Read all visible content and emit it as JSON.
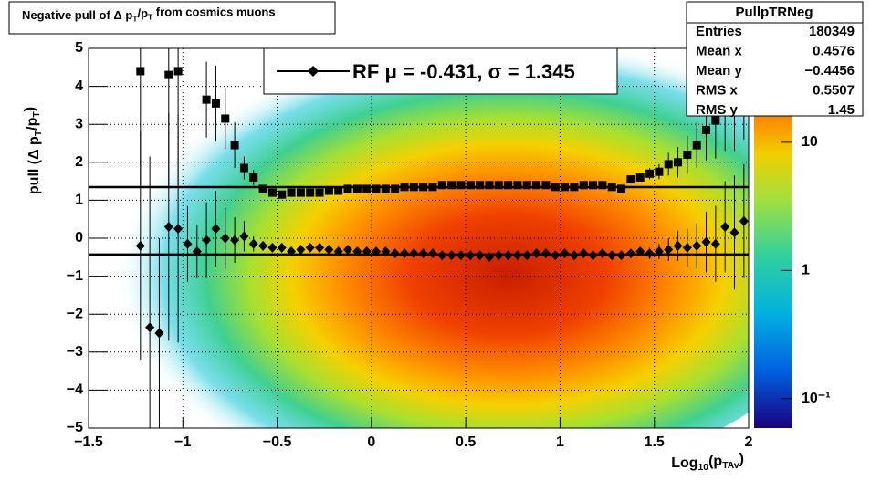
{
  "chart_data": {
    "type": "profile",
    "title_parts": [
      "Negative pull of Δ p",
      "T",
      "/p",
      "T",
      " from cosmics muons"
    ],
    "ylabel_parts": [
      "pull (Δ p",
      "T",
      "/p",
      "T",
      ")"
    ],
    "xlabel_parts": [
      "Log",
      "10",
      "(p",
      "TAv",
      ")"
    ],
    "xlim": [
      -1.5,
      2
    ],
    "ylim": [
      -5,
      5
    ],
    "xticks": [
      {
        "value": -1.5,
        "label": "−1.5"
      },
      {
        "value": -1,
        "label": "−1"
      },
      {
        "value": -0.5,
        "label": "−0.5"
      },
      0,
      0.5,
      1,
      1.5,
      2
    ],
    "yticks": [
      {
        "value": -5,
        "label": "−5"
      },
      {
        "value": -4,
        "label": "−4"
      },
      {
        "value": -3,
        "label": "−3"
      },
      {
        "value": -2,
        "label": "−2"
      },
      {
        "value": -1,
        "label": "−1"
      },
      0,
      1,
      2,
      3,
      4,
      5
    ],
    "grid": true,
    "x": [
      -1.225,
      -1.175,
      -1.125,
      -1.075,
      -1.025,
      -0.975,
      -0.925,
      -0.875,
      -0.825,
      -0.775,
      -0.725,
      -0.675,
      -0.625,
      -0.575,
      -0.525,
      -0.475,
      -0.425,
      -0.375,
      -0.325,
      -0.275,
      -0.225,
      -0.175,
      -0.125,
      -0.075,
      -0.025,
      0.025,
      0.075,
      0.125,
      0.175,
      0.225,
      0.275,
      0.325,
      0.375,
      0.425,
      0.475,
      0.525,
      0.575,
      0.625,
      0.675,
      0.725,
      0.775,
      0.825,
      0.875,
      0.925,
      0.975,
      1.025,
      1.075,
      1.125,
      1.175,
      1.225,
      1.275,
      1.325,
      1.375,
      1.425,
      1.475,
      1.525,
      1.575,
      1.625,
      1.675,
      1.725,
      1.775,
      1.825,
      1.875,
      1.925,
      1.975
    ],
    "series": [
      {
        "marker": "square",
        "color": "#000000",
        "values": [
          4.4,
          null,
          null,
          4.3,
          4.4,
          null,
          null,
          3.65,
          3.55,
          3.15,
          2.45,
          1.85,
          1.6,
          1.3,
          1.2,
          1.15,
          1.2,
          1.2,
          1.2,
          1.2,
          1.25,
          1.25,
          1.3,
          1.3,
          1.3,
          1.3,
          1.3,
          1.3,
          1.35,
          1.35,
          1.35,
          1.35,
          1.4,
          1.4,
          1.4,
          1.4,
          1.4,
          1.4,
          1.4,
          1.4,
          1.4,
          1.4,
          1.4,
          1.4,
          1.35,
          1.35,
          1.35,
          1.4,
          1.4,
          1.4,
          1.35,
          1.3,
          1.55,
          1.6,
          1.7,
          1.75,
          1.95,
          2.0,
          2.2,
          2.45,
          2.85,
          3.1,
          3.5,
          3.5,
          4.1
        ],
        "errors": [
          3,
          null,
          null,
          3,
          3,
          null,
          null,
          1,
          1,
          0.8,
          0.6,
          0.3,
          0.2,
          0.1,
          0.05,
          0.05,
          0.05,
          0.05,
          0.05,
          0.05,
          0.05,
          0.05,
          0.05,
          0.05,
          0.05,
          0.05,
          0.05,
          0.05,
          0.05,
          0.05,
          0.05,
          0.05,
          0.05,
          0.05,
          0.05,
          0.05,
          0.05,
          0.05,
          0.05,
          0.05,
          0.05,
          0.05,
          0.05,
          0.05,
          0.05,
          0.05,
          0.05,
          0.05,
          0.05,
          0.05,
          0.05,
          0.05,
          0.1,
          0.1,
          0.15,
          0.2,
          0.3,
          0.4,
          0.5,
          0.6,
          0.8,
          1,
          1.2,
          1.2,
          1.5
        ]
      },
      {
        "marker": "diamond",
        "color": "#000000",
        "values": [
          -0.2,
          -2.35,
          -2.5,
          0.3,
          0.25,
          -0.15,
          -0.35,
          -0.05,
          0.25,
          0.0,
          -0.05,
          0.05,
          -0.15,
          -0.2,
          -0.25,
          -0.25,
          -0.35,
          -0.3,
          -0.25,
          -0.25,
          -0.3,
          -0.35,
          -0.3,
          -0.35,
          -0.35,
          -0.35,
          -0.35,
          -0.4,
          -0.4,
          -0.4,
          -0.4,
          -0.4,
          -0.45,
          -0.45,
          -0.45,
          -0.45,
          -0.45,
          -0.5,
          -0.45,
          -0.45,
          -0.45,
          -0.45,
          -0.4,
          -0.4,
          -0.45,
          -0.4,
          -0.45,
          -0.4,
          -0.45,
          -0.4,
          -0.45,
          -0.45,
          -0.4,
          -0.35,
          -0.4,
          -0.35,
          -0.3,
          -0.2,
          -0.25,
          -0.2,
          -0.1,
          -0.15,
          0.3,
          0.15,
          0.45
        ],
        "errors": [
          3,
          4.5,
          2.5,
          3,
          3,
          1,
          0.7,
          1,
          1,
          0.8,
          0.6,
          0.4,
          0.2,
          0.1,
          0.05,
          0.05,
          0.05,
          0.05,
          0.05,
          0.05,
          0.05,
          0.05,
          0.05,
          0.05,
          0.05,
          0.05,
          0.05,
          0.05,
          0.05,
          0.05,
          0.05,
          0.05,
          0.05,
          0.05,
          0.05,
          0.05,
          0.05,
          0.05,
          0.05,
          0.05,
          0.05,
          0.05,
          0.05,
          0.05,
          0.05,
          0.05,
          0.05,
          0.05,
          0.05,
          0.05,
          0.05,
          0.05,
          0.1,
          0.1,
          0.15,
          0.2,
          0.3,
          0.4,
          0.5,
          0.6,
          0.8,
          1,
          1.2,
          1.5,
          1.5
        ]
      }
    ],
    "fit": {
      "mu": -0.431,
      "sigma": 1.345,
      "legend": "RF μ = -0.431, σ =   1.345"
    },
    "zlog": true,
    "zlim": [
      0.059,
      54
    ],
    "zticks": [
      {
        "value": 0.1,
        "label": "10⁻¹"
      },
      1,
      10
    ],
    "stats": {
      "title": "PullpTRNeg",
      "rows": [
        [
          "Entries",
          "180349"
        ],
        [
          "Mean x",
          "0.4576"
        ],
        [
          "Mean y",
          "−0.4456"
        ],
        [
          "RMS x",
          "0.5507"
        ],
        [
          "RMS y",
          "1.45"
        ]
      ]
    }
  }
}
